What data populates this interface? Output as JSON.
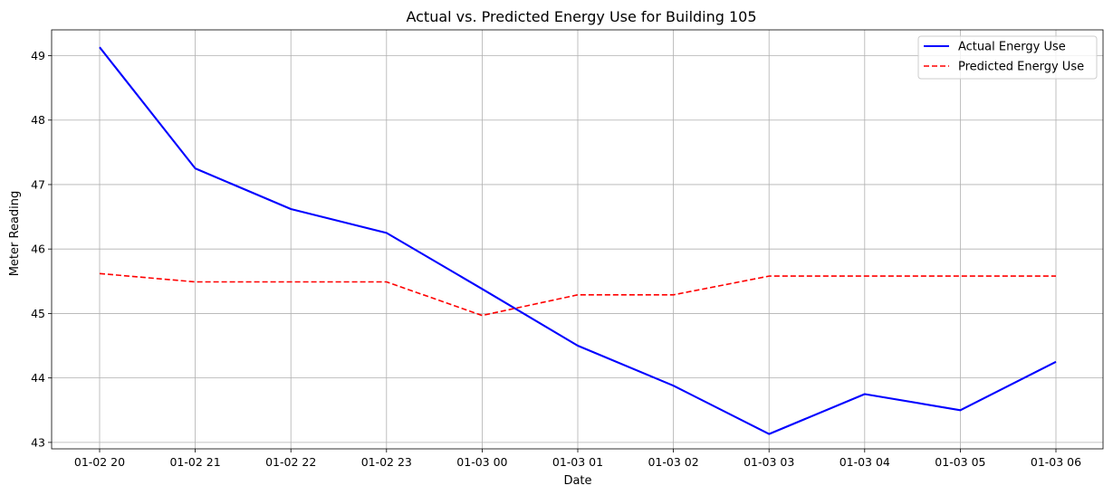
{
  "chart_data": {
    "type": "line",
    "title": "Actual vs. Predicted Energy Use for Building 105",
    "xlabel": "Date",
    "ylabel": "Meter Reading",
    "x": [
      "01-02 20",
      "01-02 21",
      "01-02 22",
      "01-02 23",
      "01-03 00",
      "01-03 01",
      "01-03 02",
      "01-03 03",
      "01-03 04",
      "01-03 05",
      "01-03 06"
    ],
    "ylim": [
      42.9,
      49.4
    ],
    "yticks": [
      "43",
      "44",
      "45",
      "46",
      "47",
      "48",
      "49"
    ],
    "grid": true,
    "legend_position": "top-right",
    "series": [
      {
        "name": "Actual Energy Use",
        "color": "#0000ff",
        "style": "solid",
        "values": [
          49.13,
          47.25,
          46.62,
          46.25,
          45.38,
          44.5,
          43.88,
          43.13,
          43.75,
          43.5,
          44.25
        ]
      },
      {
        "name": "Predicted Energy Use",
        "color": "#ff0000",
        "style": "dashed",
        "values": [
          45.62,
          45.49,
          45.49,
          45.49,
          44.97,
          45.29,
          45.29,
          45.58,
          45.58,
          45.58,
          45.58
        ]
      }
    ]
  }
}
